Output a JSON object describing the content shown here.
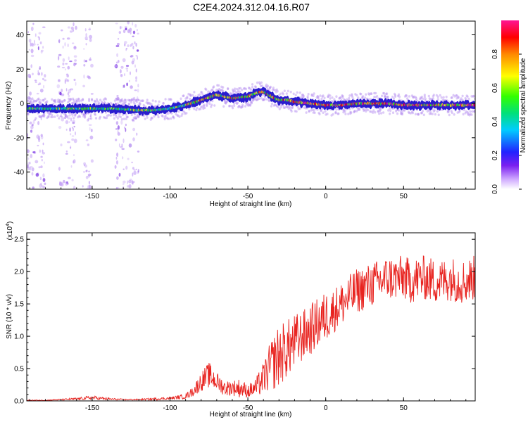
{
  "title": "C2E4.2024.312.04.16.R07",
  "colors": {
    "noise_points": "#b48cf0",
    "ridge_low": "#2a1ccf",
    "snr_line": "#e8231f",
    "axis": "#000000"
  },
  "colorbar": {
    "label": "Normalized spectral amplitude",
    "ticks": [
      "0.0",
      "0.2",
      "0.4",
      "0.6",
      "0.8"
    ],
    "tick_values": [
      0.0,
      0.2,
      0.4,
      0.6,
      0.8
    ],
    "range": [
      0,
      1
    ],
    "colormap": "rainbow (violet - blue - cyan - green - yellow - orange - red - magenta)"
  },
  "chart_data": [
    {
      "type": "heatmap",
      "title": "C2E4.2024.312.04.16.R07",
      "xlabel": "Height of straight line (km)",
      "ylabel": "Frequency (Hz)",
      "xlim": [
        -192,
        96
      ],
      "ylim": [
        -50,
        48
      ],
      "xticks": [
        -150,
        -100,
        -50,
        0,
        50
      ],
      "xtick_labels": [
        "-150",
        "-100",
        "-50",
        "0",
        "50"
      ],
      "yticks": [
        -40,
        -20,
        0,
        20,
        40
      ],
      "ytick_labels": [
        "-40",
        "-20",
        "0",
        "20",
        "40"
      ],
      "ridge": {
        "x": [
          -190,
          -170,
          -150,
          -135,
          -120,
          -110,
          -100,
          -90,
          -80,
          -70,
          -60,
          -50,
          -45,
          -40,
          -35,
          -30,
          -25,
          -20,
          -10,
          0,
          10,
          20,
          30,
          40,
          50,
          60,
          70,
          80,
          90,
          95
        ],
        "y": [
          -3,
          -3,
          -3,
          -3,
          -4,
          -4,
          -3,
          -1,
          2,
          5,
          3,
          4,
          6,
          7,
          4,
          2,
          2,
          1,
          0,
          -1,
          -1,
          0,
          0,
          0,
          -1,
          -1,
          -1,
          -1,
          -1,
          -1
        ]
      },
      "noise_bands_x": [
        [
          -192,
          -180
        ],
        [
          -172,
          -160
        ],
        [
          -156,
          -150
        ],
        [
          -135,
          -120
        ]
      ]
    },
    {
      "type": "line",
      "title": "",
      "xlabel": "Height of straight line (km)",
      "ylabel": "SNR (10 * v/v)",
      "scale_label": "(x10",
      "scale_exponent": "4",
      "xlim": [
        -192,
        96
      ],
      "ylim": [
        0,
        2.6
      ],
      "xticks": [
        -150,
        -100,
        -50,
        0,
        50
      ],
      "xtick_labels": [
        "-150",
        "-100",
        "-50",
        "0",
        "50"
      ],
      "yticks": [
        0,
        0.5,
        1.0,
        1.5,
        2.0,
        2.5
      ],
      "ytick_labels": [
        "0.0",
        "0.5",
        "1.0",
        "1.5",
        "2.0",
        "2.5"
      ],
      "series": [
        {
          "x": [
            -190,
            -180,
            -170,
            -160,
            -150,
            -140,
            -130,
            -120,
            -110,
            -100,
            -90,
            -85,
            -80,
            -75,
            -70,
            -65,
            -60,
            -55,
            -50,
            -45,
            -40,
            -35,
            -30,
            -25,
            -20,
            -15,
            -10,
            -5,
            0,
            5,
            10,
            15,
            20,
            25,
            30,
            35,
            40,
            45,
            50,
            55,
            60,
            65,
            70,
            75,
            80,
            85,
            90,
            95
          ],
          "y": [
            0.01,
            0.01,
            0.02,
            0.03,
            0.05,
            0.03,
            0.02,
            0.02,
            0.03,
            0.04,
            0.07,
            0.15,
            0.3,
            0.4,
            0.3,
            0.2,
            0.2,
            0.2,
            0.15,
            0.2,
            0.35,
            0.55,
            0.7,
            0.8,
            0.9,
            1.0,
            1.1,
            1.2,
            1.3,
            1.4,
            1.5,
            1.6,
            1.7,
            1.75,
            1.8,
            1.85,
            1.9,
            1.9,
            1.9,
            1.85,
            1.9,
            1.9,
            1.85,
            1.85,
            1.9,
            1.85,
            1.85,
            1.9
          ],
          "noise_amplitude": [
            0.005,
            0.005,
            0.01,
            0.02,
            0.03,
            0.02,
            0.01,
            0.01,
            0.02,
            0.02,
            0.04,
            0.08,
            0.15,
            0.2,
            0.15,
            0.12,
            0.12,
            0.15,
            0.1,
            0.15,
            0.25,
            0.4,
            0.5,
            0.45,
            0.45,
            0.4,
            0.4,
            0.4,
            0.4,
            0.35,
            0.35,
            0.35,
            0.35,
            0.35,
            0.35,
            0.35,
            0.35,
            0.35,
            0.35,
            0.35,
            0.35,
            0.35,
            0.35,
            0.35,
            0.35,
            0.35,
            0.35,
            0.35
          ]
        }
      ]
    }
  ]
}
